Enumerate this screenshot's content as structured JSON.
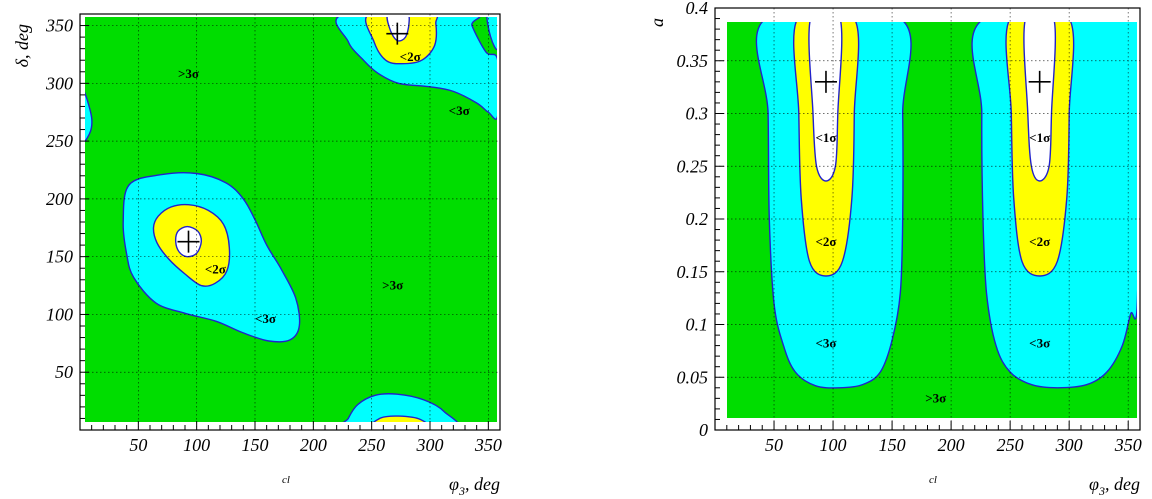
{
  "colors": {
    "gt3": "#00dd00",
    "lt3": "#00ffff",
    "lt2": "#ffff00",
    "lt1": "#ffffff",
    "contour": "#2222cc",
    "grid": "#000000"
  },
  "chart_data": [
    {
      "type": "contour",
      "xlabel": "φ3, deg",
      "ylabel": "δ, deg",
      "footnote": "cl",
      "xlim": [
        0,
        360
      ],
      "ylim": [
        0,
        360
      ],
      "xticks": [
        50,
        100,
        150,
        200,
        250,
        300,
        350
      ],
      "yticks": [
        50,
        100,
        150,
        200,
        250,
        300,
        350
      ],
      "best_fit_points": [
        {
          "x": 93,
          "y": 163
        },
        {
          "x": 272,
          "y": 343
        }
      ],
      "region_labels": [
        {
          "text": ">3σ",
          "x": 93,
          "y": 308
        },
        {
          "text": "<2σ",
          "x": 283,
          "y": 323
        },
        {
          "text": "<3σ",
          "x": 325,
          "y": 276
        },
        {
          "text": "<2σ",
          "x": 116,
          "y": 139
        },
        {
          "text": ">3σ",
          "x": 268,
          "y": 125
        },
        {
          "text": "<3σ",
          "x": 159,
          "y": 96
        }
      ],
      "regions": {
        "lt3": [
          [
            [
              42,
              212
            ],
            [
              70,
              221
            ],
            [
              100,
              222
            ],
            [
              125,
              214
            ],
            [
              140,
              200
            ],
            [
              150,
              182
            ],
            [
              160,
              160
            ],
            [
              172,
              140
            ],
            [
              185,
              114
            ],
            [
              188,
              90
            ],
            [
              180,
              78
            ],
            [
              162,
              77
            ],
            [
              140,
              84
            ],
            [
              117,
              94
            ],
            [
              90,
              101
            ],
            [
              65,
              110
            ],
            [
              46,
              132
            ],
            [
              40,
              152
            ],
            [
              37,
              180
            ]
          ],
          [
            [
              227,
              360
            ],
            [
              230,
              336
            ],
            [
              243,
              320
            ],
            [
              255,
              309
            ],
            [
              273,
              300
            ],
            [
              300,
              297
            ],
            [
              320,
              293
            ],
            [
              340,
              283
            ],
            [
              350,
              275
            ],
            [
              358,
              272
            ],
            [
              358,
              320
            ],
            [
              348,
              327
            ],
            [
              336,
              350
            ],
            [
              335,
              360
            ]
          ],
          [
            [
              0,
              250
            ],
            [
              8,
              256
            ],
            [
              10,
              270
            ],
            [
              4,
              292
            ],
            [
              0,
              295
            ]
          ],
          [
            [
              227,
              0
            ],
            [
              230,
              10
            ],
            [
              238,
              22
            ],
            [
              253,
              30
            ],
            [
              272,
              31
            ],
            [
              295,
              26
            ],
            [
              312,
              16
            ],
            [
              320,
              0
            ]
          ],
          [
            [
              349,
              360
            ],
            [
              352,
              340
            ],
            [
              358,
              330
            ],
            [
              358,
              360
            ]
          ]
        ],
        "lt2": [
          [
            [
              67,
              185
            ],
            [
              78,
              193
            ],
            [
              93,
              195
            ],
            [
              110,
              190
            ],
            [
              123,
              178
            ],
            [
              128,
              158
            ],
            [
              126,
              138
            ],
            [
              116,
              127
            ],
            [
              104,
              125
            ],
            [
              90,
              135
            ],
            [
              76,
              148
            ],
            [
              66,
              162
            ],
            [
              63,
              175
            ]
          ],
          [
            [
              248,
              360
            ],
            [
              252,
              336
            ],
            [
              262,
              320
            ],
            [
              276,
              317
            ],
            [
              293,
              320
            ],
            [
              304,
              333
            ],
            [
              305,
              352
            ],
            [
              301,
              360
            ]
          ],
          [
            [
              250,
              0
            ],
            [
              257,
              10
            ],
            [
              273,
              12
            ],
            [
              292,
              9
            ],
            [
              298,
              0
            ]
          ]
        ],
        "lt1": [
          [
            [
              84,
              172
            ],
            [
              92,
              176
            ],
            [
              101,
              172
            ],
            [
              104,
              163
            ],
            [
              100,
              153
            ],
            [
              92,
              150
            ],
            [
              85,
              154
            ],
            [
              82,
              163
            ]
          ],
          [
            [
              264,
              360
            ],
            [
              266,
              346
            ],
            [
              272,
              337
            ],
            [
              279,
              340
            ],
            [
              282,
              352
            ],
            [
              280,
              360
            ]
          ]
        ]
      }
    },
    {
      "type": "contour",
      "xlabel": "φ3, deg",
      "ylabel": "a",
      "footnote": "cl",
      "xlim": [
        0,
        360
      ],
      "ylim": [
        0,
        0.4
      ],
      "xticks": [
        50,
        100,
        150,
        200,
        250,
        300,
        350
      ],
      "yticks": [
        0,
        0.05,
        0.1,
        0.15,
        0.2,
        0.25,
        0.3,
        0.35,
        0.4
      ],
      "ytick_labels": [
        "0",
        "0.05",
        "0.1",
        "0.15",
        "0.2",
        "0.25",
        "0.3",
        "0.35",
        "0.4"
      ],
      "best_fit_points": [
        {
          "x": 94,
          "y": 0.33
        },
        {
          "x": 275,
          "y": 0.33
        }
      ],
      "region_labels": [
        {
          "text": "<1σ",
          "x": 94,
          "y": 0.277
        },
        {
          "text": "<1σ",
          "x": 275,
          "y": 0.277
        },
        {
          "text": "<2σ",
          "x": 94,
          "y": 0.178
        },
        {
          "text": "<2σ",
          "x": 275,
          "y": 0.178
        },
        {
          "text": "<3σ",
          "x": 94,
          "y": 0.082
        },
        {
          "text": "<3σ",
          "x": 275,
          "y": 0.082
        },
        {
          "text": ">3σ",
          "x": 187,
          "y": 0.03
        }
      ],
      "regions": {
        "lt3": [
          [
            [
              0,
              0.39
            ],
            [
              7,
              0.39
            ],
            [
              5,
              0.3
            ],
            [
              3,
              0.2
            ],
            [
              0,
              0.18
            ]
          ],
          [
            [
              43,
              0.39
            ],
            [
              45,
              0.3
            ],
            [
              46,
              0.2
            ],
            [
              50,
              0.12
            ],
            [
              58,
              0.08
            ],
            [
              68,
              0.055
            ],
            [
              85,
              0.042
            ],
            [
              105,
              0.04
            ],
            [
              125,
              0.043
            ],
            [
              140,
              0.055
            ],
            [
              150,
              0.085
            ],
            [
              157,
              0.13
            ],
            [
              159,
              0.2
            ],
            [
              159,
              0.3
            ],
            [
              157,
              0.39
            ]
          ],
          [
            [
              228,
              0.39
            ],
            [
              226,
              0.3
            ],
            [
              227,
              0.2
            ],
            [
              230,
              0.13
            ],
            [
              238,
              0.08
            ],
            [
              250,
              0.055
            ],
            [
              268,
              0.043
            ],
            [
              290,
              0.04
            ],
            [
              315,
              0.043
            ],
            [
              332,
              0.055
            ],
            [
              345,
              0.08
            ],
            [
              352,
              0.11
            ],
            [
              358,
              0.13
            ],
            [
              358,
              0.39
            ]
          ]
        ],
        "lt2": [
          [
            [
              70,
              0.39
            ],
            [
              71,
              0.3
            ],
            [
              73,
              0.22
            ],
            [
              80,
              0.16
            ],
            [
              94,
              0.146
            ],
            [
              108,
              0.16
            ],
            [
              116,
              0.22
            ],
            [
              118,
              0.3
            ],
            [
              118,
              0.39
            ]
          ],
          [
            [
              250,
              0.39
            ],
            [
              251,
              0.3
            ],
            [
              253,
              0.22
            ],
            [
              260,
              0.16
            ],
            [
              275,
              0.146
            ],
            [
              290,
              0.16
            ],
            [
              298,
              0.22
            ],
            [
              300,
              0.3
            ],
            [
              300,
              0.39
            ]
          ]
        ],
        "lt1": [
          [
            [
              81,
              0.39
            ],
            [
              83,
              0.3
            ],
            [
              86,
              0.25
            ],
            [
              94,
              0.236
            ],
            [
              102,
              0.25
            ],
            [
              104,
              0.3
            ],
            [
              106,
              0.39
            ]
          ],
          [
            [
              263,
              0.39
            ],
            [
              265,
              0.3
            ],
            [
              268,
              0.25
            ],
            [
              275,
              0.236
            ],
            [
              283,
              0.25
            ],
            [
              285,
              0.3
            ],
            [
              287,
              0.39
            ]
          ]
        ]
      }
    }
  ]
}
